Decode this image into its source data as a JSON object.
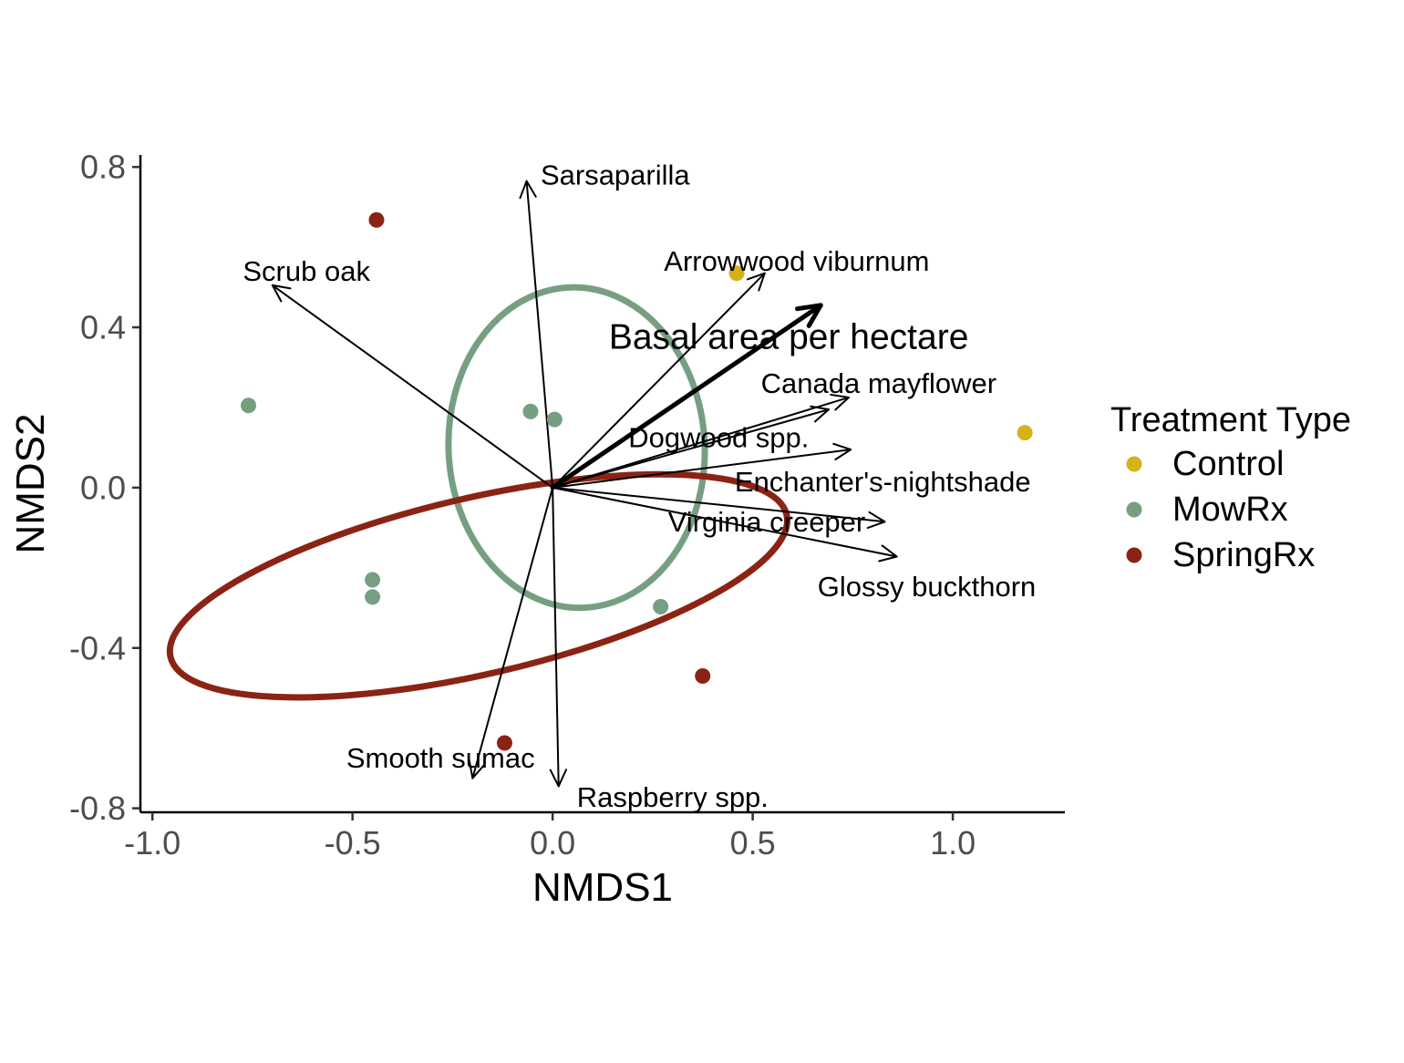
{
  "chart_data": {
    "type": "scatter",
    "xlabel": "NMDS1",
    "ylabel": "NMDS2",
    "xlim": [
      -1.03,
      1.28
    ],
    "ylim": [
      -0.81,
      0.83
    ],
    "x_ticks": [
      -1.0,
      -0.5,
      0.0,
      0.5,
      1.0
    ],
    "x_tick_labels": [
      "-1.0",
      "-0.5",
      "0.0",
      "0.5",
      "1.0"
    ],
    "y_ticks": [
      -0.8,
      -0.4,
      0.0,
      0.4,
      0.8
    ],
    "y_tick_labels": [
      "-0.8",
      "-0.4",
      "0.0",
      "0.4",
      "0.8"
    ],
    "grid": false,
    "legend": {
      "title": "Treatment Type",
      "position": "right",
      "entries": [
        {
          "label": "Control",
          "color": "#D4B21A"
        },
        {
          "label": "MowRx",
          "color": "#769F82"
        },
        {
          "label": "SpringRx",
          "color": "#8B2315"
        }
      ]
    },
    "series": [
      {
        "name": "Control",
        "color": "#D4B21A",
        "points": [
          [
            0.46,
            0.535
          ],
          [
            1.18,
            0.137
          ]
        ]
      },
      {
        "name": "MowRx",
        "color": "#769F82",
        "points": [
          [
            -0.76,
            0.205
          ],
          [
            -0.055,
            0.19
          ],
          [
            0.005,
            0.17
          ],
          [
            -0.45,
            -0.23
          ],
          [
            -0.45,
            -0.273
          ],
          [
            0.27,
            -0.297
          ]
        ]
      },
      {
        "name": "SpringRx",
        "color": "#8B2315",
        "points": [
          [
            -0.44,
            0.668
          ],
          [
            -0.12,
            -0.637
          ],
          [
            0.375,
            -0.47
          ]
        ]
      }
    ],
    "ellipses": [
      {
        "group": "MowRx",
        "color": "#769F82",
        "center": [
          0.06,
          0.1
        ],
        "semi_axes": [
          0.32,
          0.4
        ],
        "rotation_deg": -3
      },
      {
        "group": "SpringRx",
        "color": "#8B2315",
        "center": [
          -0.185,
          -0.245
        ],
        "semi_axes": [
          0.79,
          0.22
        ],
        "rotation_deg": -13
      }
    ],
    "vectors": [
      {
        "label": "Sarsaparilla",
        "end": [
          -0.065,
          0.765
        ],
        "label_pos": [
          -0.03,
          0.78
        ],
        "anchor": "start"
      },
      {
        "label": "Scrub oak",
        "end": [
          -0.7,
          0.505
        ],
        "label_pos": [
          -0.615,
          0.54
        ],
        "anchor": "middle"
      },
      {
        "label": "Arrowwood viburnum",
        "end": [
          0.53,
          0.535
        ],
        "label_pos": [
          0.61,
          0.565
        ],
        "anchor": "middle"
      },
      {
        "label": "Basal area per hectare",
        "end": [
          0.67,
          0.455
        ],
        "label_pos": [
          0.59,
          0.375
        ],
        "anchor": "middle",
        "emphasis": true
      },
      {
        "label": "Canada mayflower",
        "end": [
          0.74,
          0.225
        ],
        "label_pos": [
          0.815,
          0.26
        ],
        "anchor": "middle"
      },
      {
        "label": "Dogwood spp.",
        "end": [
          0.69,
          0.195
        ],
        "label_pos": [
          0.415,
          0.125
        ],
        "anchor": "middle"
      },
      {
        "label": "Enchanter's-nightshade",
        "end": [
          0.745,
          0.095
        ],
        "label_pos": [
          0.825,
          0.015
        ],
        "anchor": "middle"
      },
      {
        "label": "Virginia creeper",
        "end": [
          0.83,
          -0.085
        ],
        "label_pos": [
          0.535,
          -0.085
        ],
        "anchor": "middle"
      },
      {
        "label": "Glossy buckthorn",
        "end": [
          0.86,
          -0.172
        ],
        "label_pos": [
          0.935,
          -0.247
        ],
        "anchor": "middle"
      },
      {
        "label": "Smooth sumac",
        "end": [
          -0.2,
          -0.725
        ],
        "label_pos": [
          -0.28,
          -0.675
        ],
        "anchor": "middle"
      },
      {
        "label": "Raspberry spp.",
        "end": [
          0.015,
          -0.745
        ],
        "label_pos": [
          0.3,
          -0.772
        ],
        "anchor": "middle"
      }
    ]
  }
}
